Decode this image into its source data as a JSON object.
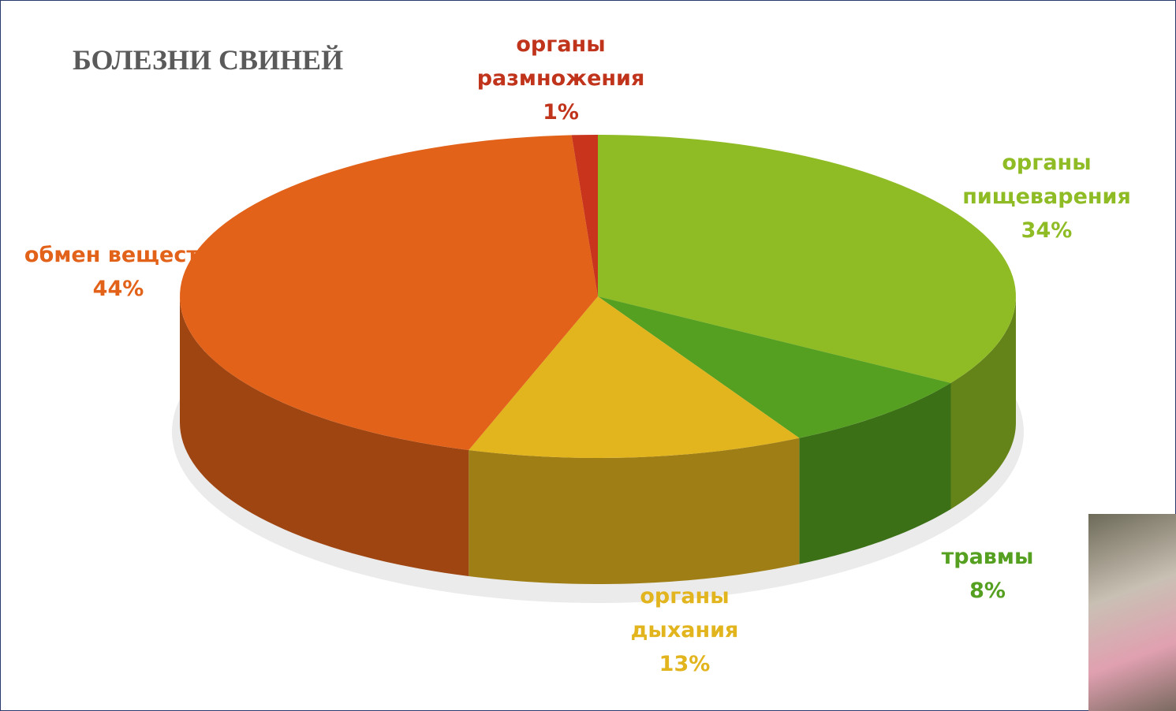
{
  "chart_data": {
    "type": "pie",
    "title": "БОЛЕЗНИ СВИНЕЙ",
    "categories": [
      "органы пищеварения",
      "травмы",
      "органы дыхания",
      "обмен веществ",
      "органы размножения"
    ],
    "values": [
      34,
      8,
      13,
      44,
      1
    ],
    "value_labels": [
      "34%",
      "8%",
      "13%",
      "44%",
      "1%"
    ],
    "colors": [
      "#8fbc24",
      "#55a020",
      "#e2b41e",
      "#e2621a",
      "#c8341c"
    ]
  }
}
